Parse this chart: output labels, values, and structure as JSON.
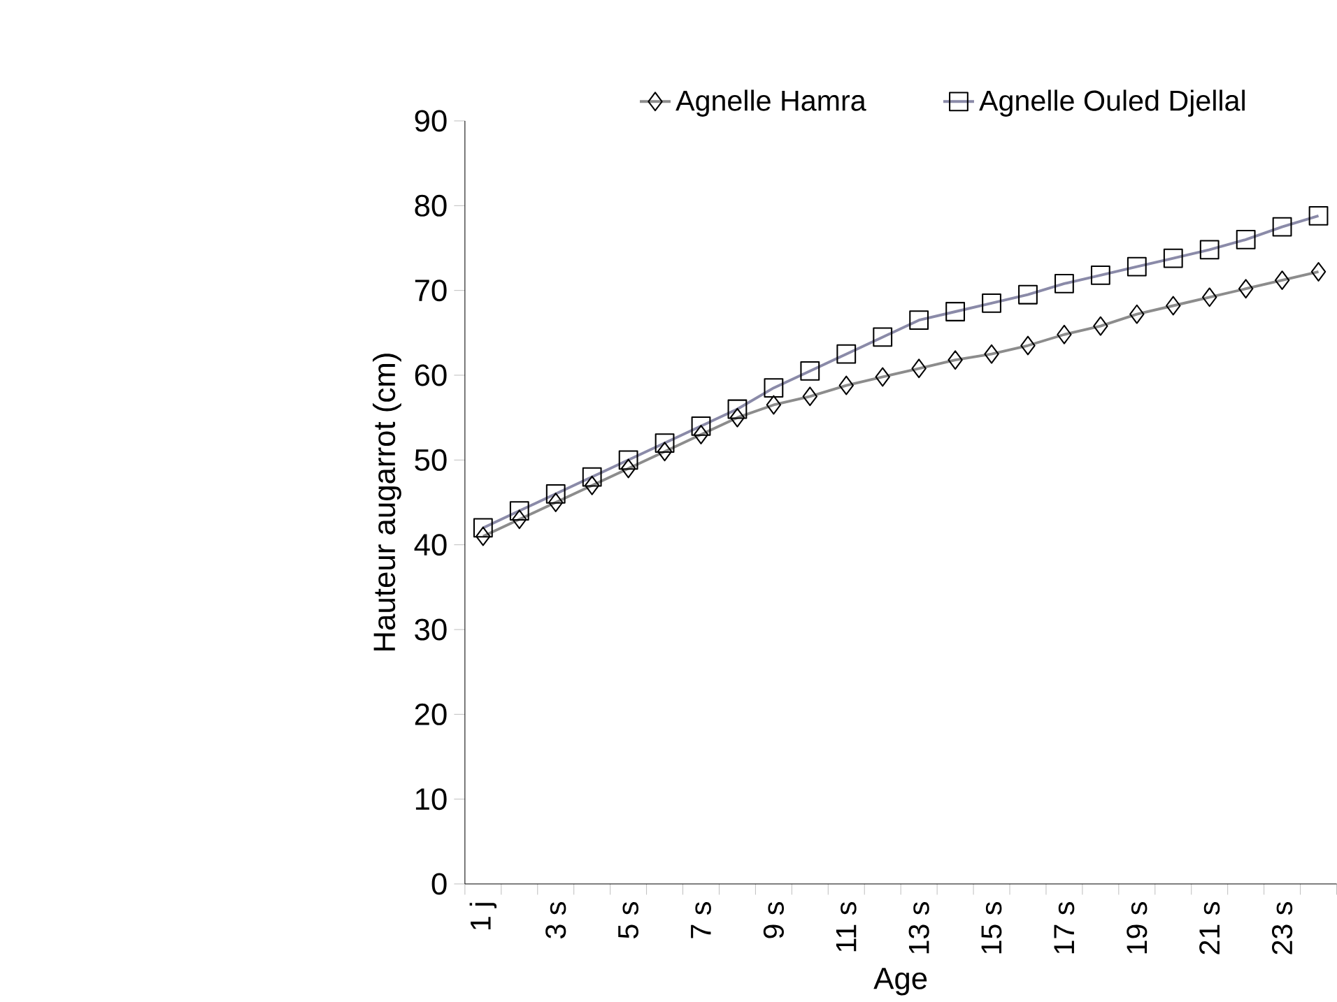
{
  "chart_data": {
    "type": "line",
    "xlabel": "Age",
    "ylabel": "Hauteur augarrot (cm)",
    "categories": [
      "1 j",
      null,
      "3 s",
      null,
      "5 s",
      null,
      "7 s",
      null,
      "9 s",
      null,
      "11 s",
      null,
      "13 s",
      null,
      "15 s",
      null,
      "17 s",
      null,
      "19 s",
      null,
      "21 s",
      null,
      "23 s",
      null
    ],
    "series": [
      {
        "name": "Agnelle Hamra",
        "color": "#8c8c8c",
        "marker": "diamond",
        "values": [
          41,
          43,
          45,
          47,
          49,
          51,
          53,
          55,
          56.5,
          57.5,
          58.8,
          59.8,
          60.8,
          61.8,
          62.5,
          63.5,
          64.8,
          65.8,
          67.2,
          68.2,
          69.2,
          70.2,
          71.2,
          72.2
        ]
      },
      {
        "name": "Agnelle Ouled Djellal",
        "color": "#8a8aa8",
        "marker": "square",
        "values": [
          42,
          44,
          46,
          48,
          50,
          52,
          54,
          56,
          58.5,
          60.5,
          62.5,
          64.5,
          66.5,
          67.5,
          68.5,
          69.5,
          70.8,
          71.8,
          72.8,
          73.8,
          74.8,
          76,
          77.5,
          78.8
        ]
      }
    ],
    "ylim": [
      0,
      90
    ],
    "yticks": [
      0,
      10,
      20,
      30,
      40,
      50,
      60,
      70,
      80,
      90
    ],
    "legend": "top",
    "grid": false
  }
}
